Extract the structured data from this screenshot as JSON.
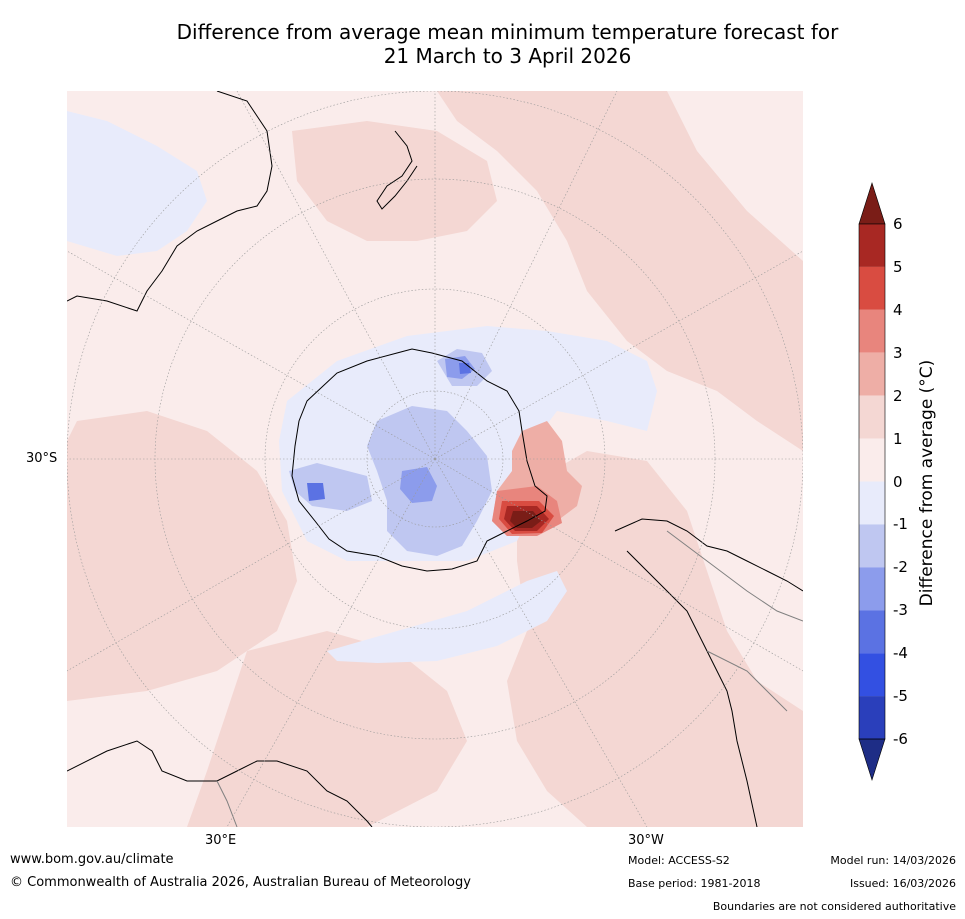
{
  "title": {
    "line1": "Difference from average mean minimum temperature forecast for",
    "line2": "21 March to 3 April 2026"
  },
  "map": {
    "lat_label": "30°S",
    "lon_label_east": "30°E",
    "lon_label_west": "30°W"
  },
  "colorbar": {
    "label": "Difference from average (°C)",
    "ticks": [
      "6",
      "5",
      "4",
      "3",
      "2",
      "1",
      "0",
      "-1",
      "-2",
      "-3",
      "-4",
      "-5",
      "-6"
    ],
    "bands": [
      {
        "range": "5 to 6",
        "color": "#a82823"
      },
      {
        "range": "4 to 5",
        "color": "#d94c41"
      },
      {
        "range": "3 to 4",
        "color": "#e8857d"
      },
      {
        "range": "2 to 3",
        "color": "#eeaea6"
      },
      {
        "range": "1 to 2",
        "color": "#f4d7d3"
      },
      {
        "range": "0 to 1",
        "color": "#faeceb"
      },
      {
        "range": "-1 to 0",
        "color": "#e8ebfb"
      },
      {
        "range": "-2 to -1",
        "color": "#bfc7f1"
      },
      {
        "range": "-3 to -2",
        "color": "#8c9cec"
      },
      {
        "range": "-4 to -3",
        "color": "#5b72e3"
      },
      {
        "range": "-5 to -4",
        "color": "#3350e2"
      },
      {
        "range": "-6 to -5",
        "color": "#2a3fbb"
      }
    ],
    "over_color": "#7a1d17",
    "under_color": "#1e2d86"
  },
  "footer": {
    "website": "www.bom.gov.au/climate",
    "copyright": "© Commonwealth of Australia 2026, Australian Bureau of Meteorology",
    "model": "Model: ACCESS-S2",
    "base_period": "Base period: 1981-2018",
    "model_run": "Model run: 14/03/2026",
    "issued": "Issued: 16/03/2026",
    "disclaimer": "Boundaries are not considered authoritative"
  }
}
